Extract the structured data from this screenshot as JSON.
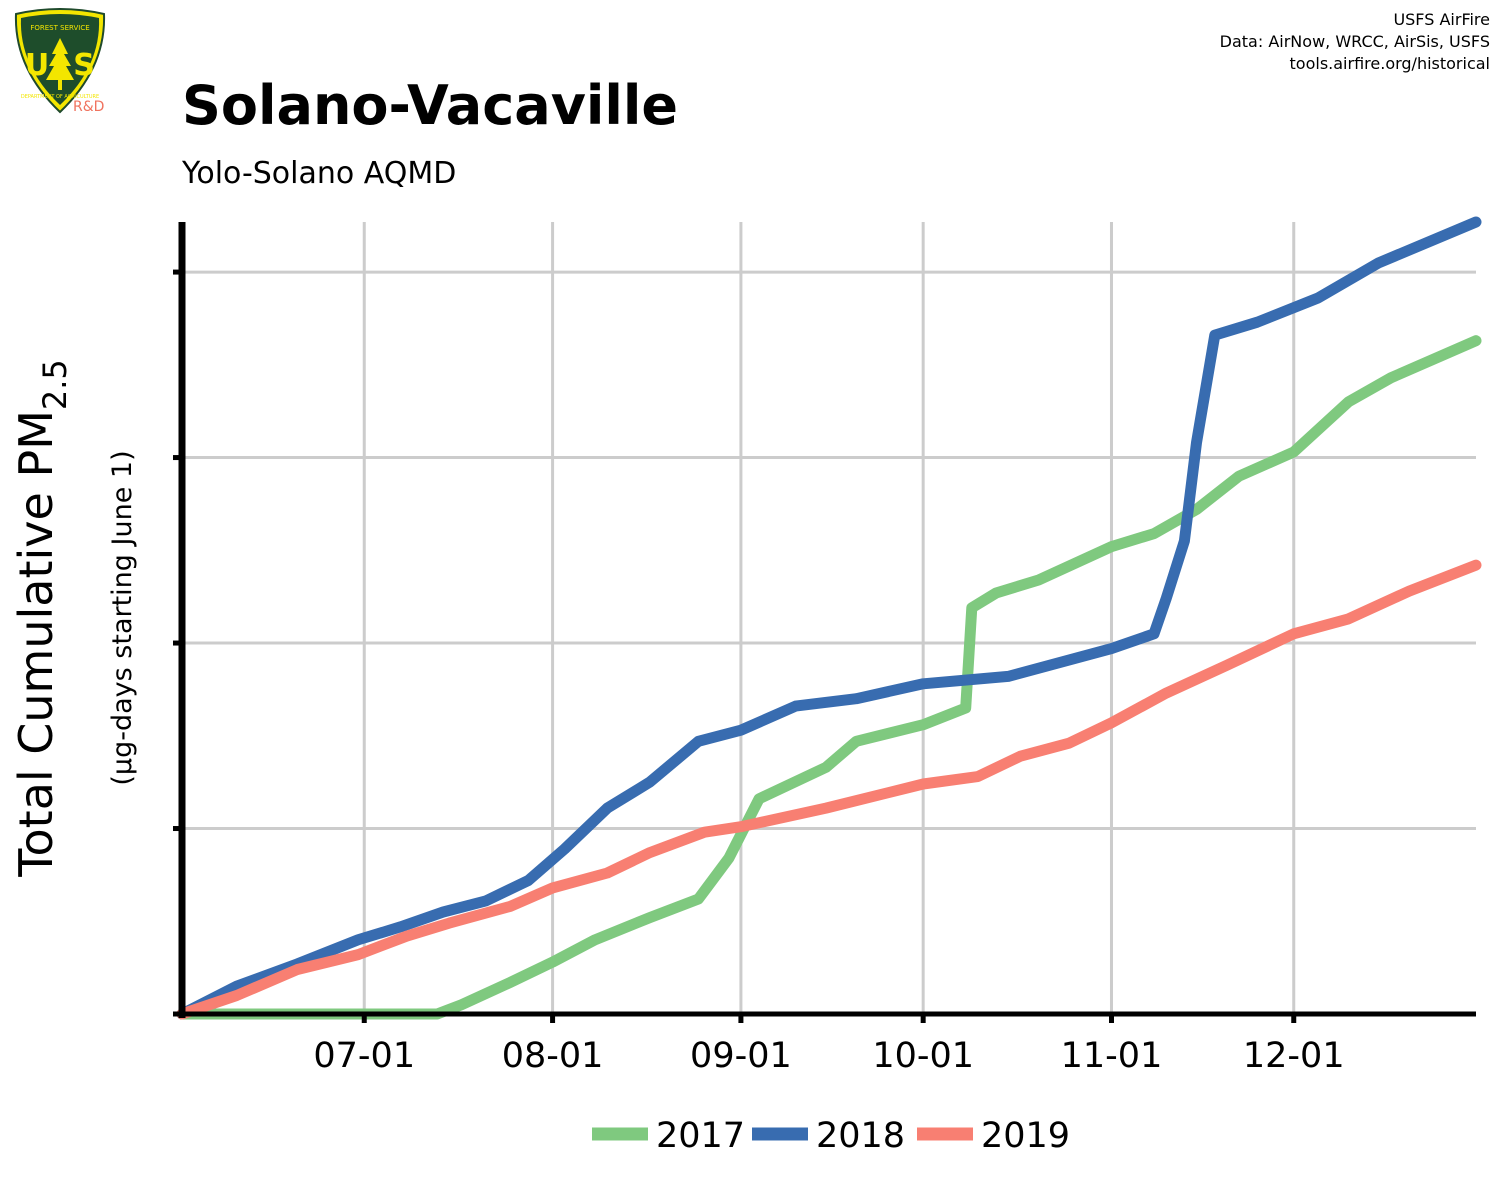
{
  "credits": {
    "line1": "USFS AirFire",
    "line2": "Data: AirNow, WRCC, AirSis, USFS",
    "line3": "tools.airfire.org/historical"
  },
  "logo": {
    "icon": "usfs-shield-icon",
    "top_text": "FOREST SERVICE",
    "letters": "U S",
    "bottom_text": "DEPARTMENT OF AGRICULTURE",
    "badge": "R&D"
  },
  "chart_data": {
    "type": "line",
    "title": "Solano-Vacaville",
    "subtitle": "Yolo-Solano AQMD",
    "ylabel_main": "Total Cumulative PM",
    "ylabel_sub": "2.5",
    "ylabel_units": "(µg-days starting June 1)",
    "xlabel": "",
    "x_ticks": [
      "07-01",
      "08-01",
      "09-01",
      "10-01",
      "11-01",
      "12-01"
    ],
    "x_tick_dates": [
      "2000-07-01",
      "2000-08-01",
      "2000-09-01",
      "2000-10-01",
      "2000-11-01",
      "2000-12-01"
    ],
    "x_range": [
      "2000-06-01",
      "2000-12-31"
    ],
    "y_range": [
      0,
      4.27
    ],
    "y_gridlines": [
      0,
      1,
      2,
      3,
      4
    ],
    "y_tick_labels_shown": false,
    "grid": true,
    "legend_position": "bottom",
    "series": [
      {
        "name": "2017",
        "color": "#7fc97f",
        "points": [
          [
            "2000-06-01",
            0
          ],
          [
            "2000-07-13",
            0
          ],
          [
            "2000-07-17",
            0.05
          ],
          [
            "2000-07-25",
            0.17
          ],
          [
            "2000-08-01",
            0.28
          ],
          [
            "2000-08-08",
            0.4
          ],
          [
            "2000-08-17",
            0.52
          ],
          [
            "2000-08-25",
            0.62
          ],
          [
            "2000-08-30",
            0.84
          ],
          [
            "2000-09-04",
            1.16
          ],
          [
            "2000-09-15",
            1.33
          ],
          [
            "2000-09-20",
            1.47
          ],
          [
            "2000-10-01",
            1.56
          ],
          [
            "2000-10-08",
            1.65
          ],
          [
            "2000-10-09",
            2.19
          ],
          [
            "2000-10-13",
            2.27
          ],
          [
            "2000-10-20",
            2.34
          ],
          [
            "2000-11-01",
            2.52
          ],
          [
            "2000-11-08",
            2.59
          ],
          [
            "2000-11-15",
            2.72
          ],
          [
            "2000-11-22",
            2.9
          ],
          [
            "2000-12-01",
            3.03
          ],
          [
            "2000-12-10",
            3.3
          ],
          [
            "2000-12-17",
            3.43
          ],
          [
            "2000-12-31",
            3.63
          ]
        ]
      },
      {
        "name": "2018",
        "color": "#386cb0",
        "points": [
          [
            "2000-06-01",
            0
          ],
          [
            "2000-06-10",
            0.15
          ],
          [
            "2000-06-20",
            0.27
          ],
          [
            "2000-06-30",
            0.4
          ],
          [
            "2000-07-07",
            0.47
          ],
          [
            "2000-07-14",
            0.55
          ],
          [
            "2000-07-21",
            0.61
          ],
          [
            "2000-07-28",
            0.72
          ],
          [
            "2000-08-03",
            0.89
          ],
          [
            "2000-08-10",
            1.11
          ],
          [
            "2000-08-17",
            1.25
          ],
          [
            "2000-08-25",
            1.47
          ],
          [
            "2000-09-01",
            1.53
          ],
          [
            "2000-09-10",
            1.66
          ],
          [
            "2000-09-20",
            1.7
          ],
          [
            "2000-10-01",
            1.78
          ],
          [
            "2000-10-15",
            1.82
          ],
          [
            "2000-11-01",
            1.97
          ],
          [
            "2000-11-08",
            2.05
          ],
          [
            "2000-11-10",
            2.24
          ],
          [
            "2000-11-13",
            2.55
          ],
          [
            "2000-11-15",
            3.08
          ],
          [
            "2000-11-18",
            3.66
          ],
          [
            "2000-11-25",
            3.73
          ],
          [
            "2000-12-05",
            3.86
          ],
          [
            "2000-12-15",
            4.05
          ],
          [
            "2000-12-31",
            4.27
          ]
        ]
      },
      {
        "name": "2019",
        "color": "#f87f72",
        "points": [
          [
            "2000-06-01",
            0
          ],
          [
            "2000-06-10",
            0.1
          ],
          [
            "2000-06-20",
            0.24
          ],
          [
            "2000-06-30",
            0.32
          ],
          [
            "2000-07-08",
            0.42
          ],
          [
            "2000-07-15",
            0.49
          ],
          [
            "2000-07-25",
            0.58
          ],
          [
            "2000-08-01",
            0.68
          ],
          [
            "2000-08-10",
            0.76
          ],
          [
            "2000-08-17",
            0.87
          ],
          [
            "2000-08-26",
            0.98
          ],
          [
            "2000-09-01",
            1.01
          ],
          [
            "2000-09-15",
            1.11
          ],
          [
            "2000-10-01",
            1.24
          ],
          [
            "2000-10-10",
            1.28
          ],
          [
            "2000-10-17",
            1.39
          ],
          [
            "2000-10-25",
            1.46
          ],
          [
            "2000-11-01",
            1.57
          ],
          [
            "2000-11-10",
            1.73
          ],
          [
            "2000-11-20",
            1.88
          ],
          [
            "2000-12-01",
            2.05
          ],
          [
            "2000-12-10",
            2.13
          ],
          [
            "2000-12-20",
            2.28
          ],
          [
            "2000-12-31",
            2.42
          ]
        ]
      }
    ]
  }
}
